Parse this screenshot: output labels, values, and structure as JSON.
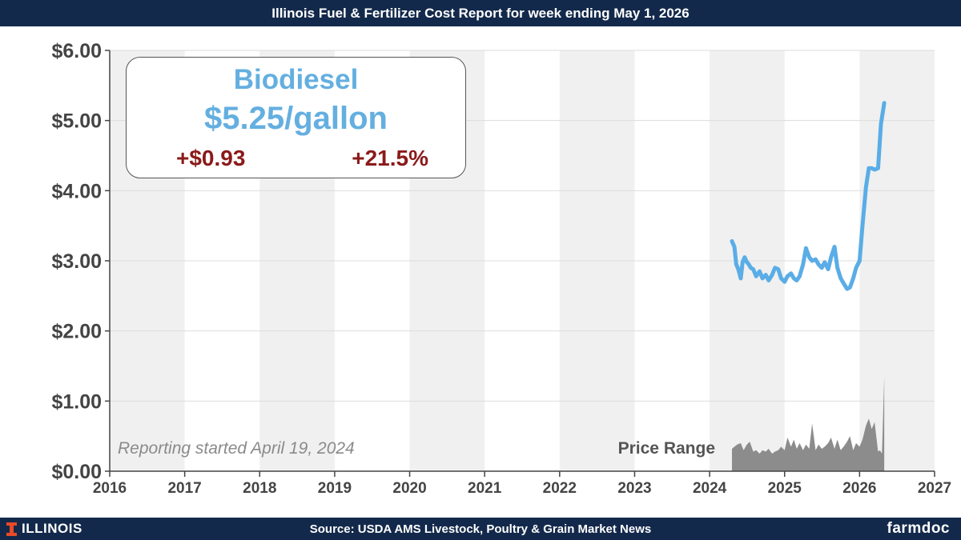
{
  "header": {
    "title": "Illinois Fuel & Fertilizer Cost Report for week ending May 1, 2026"
  },
  "callout": {
    "product": "Biodiesel",
    "price": "$5.25/gallon",
    "change": "+$0.93",
    "percent_change": "+21.5%"
  },
  "footer": {
    "logo_text": "ILLINOIS",
    "source": "Source: USDA AMS Livestock, Poultry & Grain Market News",
    "brand": "farmdoc"
  },
  "colors": {
    "price_line": "#5aade6",
    "range_area": "#8c8c8c",
    "callout_text": "#64afe0",
    "change_text": "#8b1a1a",
    "header_bg": "#13294b",
    "band_shade": "#f0f0f0"
  },
  "chart_data": {
    "type": "line",
    "xlim": [
      2016,
      2027
    ],
    "ylim": [
      0,
      6
    ],
    "x_ticks": [
      "2016",
      "2017",
      "2018",
      "2019",
      "2020",
      "2021",
      "2022",
      "2023",
      "2024",
      "2025",
      "2026",
      "2027"
    ],
    "y_ticks": [
      "$0.00",
      "$1.00",
      "$2.00",
      "$3.00",
      "$4.00",
      "$5.00",
      "$6.00"
    ],
    "grid": true,
    "annotations": {
      "reporting_note": "Reporting started April 19, 2024",
      "range_label": "Price Range"
    },
    "series": [
      {
        "name": "Biodiesel",
        "role": "price",
        "x": [
          "2024-04-19",
          "2024-05-01",
          "2024-05-10",
          "2024-05-20",
          "2024-06-01",
          "2024-06-10",
          "2024-06-20",
          "2024-07-01",
          "2024-07-10",
          "2024-07-20",
          "2024-08-01",
          "2024-08-15",
          "2024-09-01",
          "2024-09-15",
          "2024-10-01",
          "2024-10-15",
          "2024-11-01",
          "2024-11-15",
          "2024-12-01",
          "2024-12-15",
          "2025-01-01",
          "2025-01-15",
          "2025-02-01",
          "2025-02-15",
          "2025-03-01",
          "2025-03-15",
          "2025-04-01",
          "2025-04-15",
          "2025-05-01",
          "2025-05-15",
          "2025-06-01",
          "2025-06-15",
          "2025-07-01",
          "2025-07-15",
          "2025-08-01",
          "2025-08-15",
          "2025-09-01",
          "2025-09-15",
          "2025-10-01",
          "2025-10-15",
          "2025-11-01",
          "2025-11-15",
          "2025-12-01",
          "2025-12-15",
          "2026-01-01",
          "2026-01-15",
          "2026-02-01",
          "2026-02-15",
          "2026-03-01",
          "2026-03-15",
          "2026-04-01",
          "2026-04-15",
          "2026-05-01"
        ],
        "y": [
          3.28,
          3.2,
          2.95,
          2.88,
          2.75,
          2.98,
          3.05,
          2.98,
          2.95,
          2.9,
          2.88,
          2.78,
          2.85,
          2.75,
          2.8,
          2.72,
          2.8,
          2.9,
          2.88,
          2.75,
          2.7,
          2.78,
          2.82,
          2.75,
          2.72,
          2.78,
          2.95,
          3.18,
          3.05,
          3.0,
          3.02,
          2.95,
          2.9,
          2.98,
          2.88,
          3.05,
          3.2,
          2.9,
          2.75,
          2.68,
          2.6,
          2.62,
          2.75,
          2.9,
          3.0,
          3.5,
          4.05,
          4.32,
          4.32,
          4.3,
          4.32,
          4.95,
          5.25
        ]
      },
      {
        "name": "Price Range",
        "role": "range",
        "x": [
          "2024-04-19",
          "2024-05-01",
          "2024-05-15",
          "2024-06-01",
          "2024-06-15",
          "2024-07-01",
          "2024-07-15",
          "2024-08-01",
          "2024-08-15",
          "2024-09-01",
          "2024-09-15",
          "2024-10-01",
          "2024-10-15",
          "2024-11-01",
          "2024-11-15",
          "2024-12-01",
          "2024-12-15",
          "2025-01-01",
          "2025-01-15",
          "2025-02-01",
          "2025-02-15",
          "2025-03-01",
          "2025-03-15",
          "2025-04-01",
          "2025-04-15",
          "2025-05-01",
          "2025-05-15",
          "2025-06-01",
          "2025-06-15",
          "2025-07-01",
          "2025-07-15",
          "2025-08-01",
          "2025-08-15",
          "2025-09-01",
          "2025-09-15",
          "2025-10-01",
          "2025-10-15",
          "2025-11-01",
          "2025-11-15",
          "2025-12-01",
          "2025-12-15",
          "2026-01-01",
          "2026-01-15",
          "2026-02-01",
          "2026-02-15",
          "2026-03-01",
          "2026-03-15",
          "2026-04-01",
          "2026-04-10",
          "2026-04-20",
          "2026-05-01"
        ],
        "y": [
          0.32,
          0.35,
          0.38,
          0.4,
          0.3,
          0.38,
          0.42,
          0.28,
          0.3,
          0.25,
          0.3,
          0.28,
          0.32,
          0.25,
          0.28,
          0.3,
          0.35,
          0.3,
          0.48,
          0.35,
          0.45,
          0.32,
          0.4,
          0.3,
          0.38,
          0.32,
          0.68,
          0.3,
          0.38,
          0.32,
          0.35,
          0.4,
          0.48,
          0.32,
          0.45,
          0.3,
          0.35,
          0.42,
          0.5,
          0.3,
          0.4,
          0.35,
          0.45,
          0.65,
          0.75,
          0.6,
          0.7,
          0.28,
          0.3,
          0.25,
          1.35
        ]
      }
    ]
  }
}
